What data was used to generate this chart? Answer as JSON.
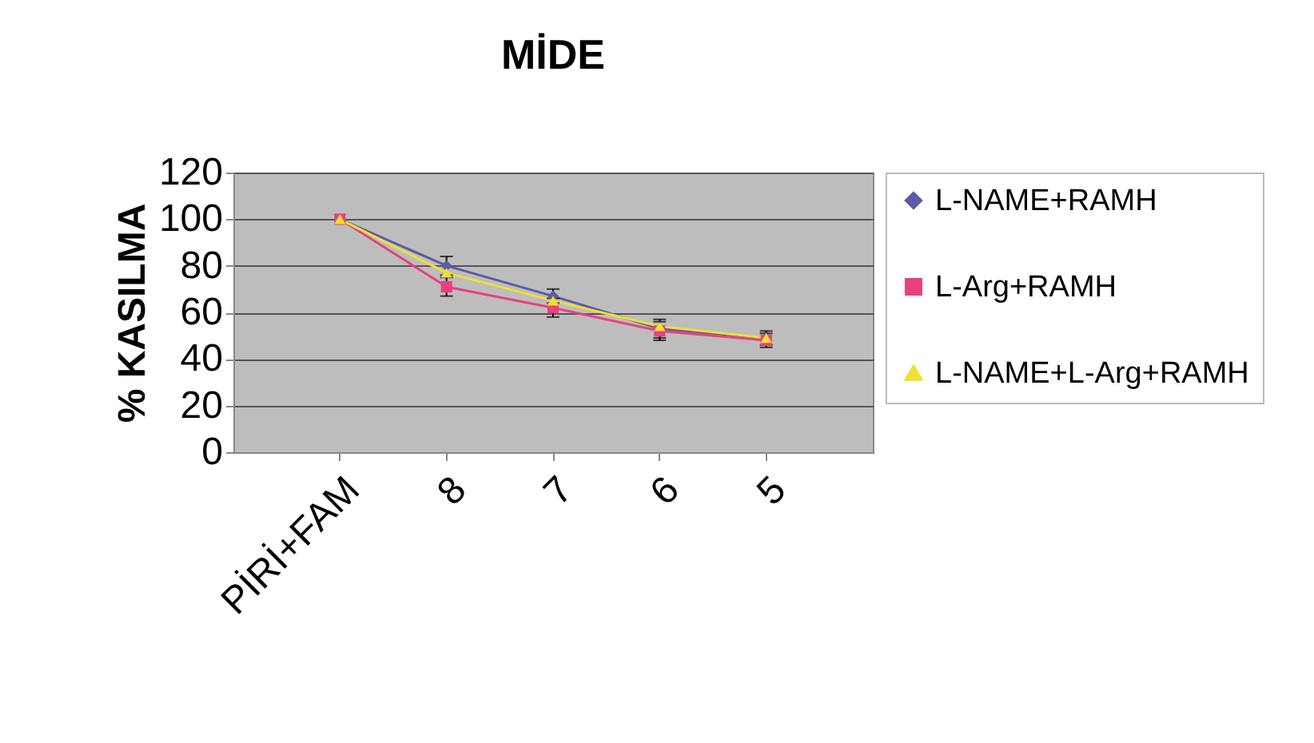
{
  "chart_data": {
    "type": "line",
    "title": "MİDE",
    "ylabel": "% KASILMA",
    "categories": [
      "PİRİ+FAM",
      "8",
      "7",
      "6",
      "5"
    ],
    "ylim": [
      0,
      120
    ],
    "yticks": [
      0,
      20,
      40,
      60,
      80,
      100,
      120
    ],
    "grid": "y",
    "legend": "top right",
    "series": [
      {
        "name": "L-NAME+RAMH",
        "color": "#5b5ba8",
        "marker": "diamond",
        "values": [
          100,
          80,
          67,
          53,
          49
        ],
        "errors": [
          null,
          4,
          3,
          4,
          3
        ]
      },
      {
        "name": "L-Arg+RAMH",
        "color": "#e8417f",
        "marker": "square",
        "values": [
          100,
          71,
          62,
          52,
          48
        ],
        "errors": [
          null,
          4,
          4,
          4,
          3
        ]
      },
      {
        "name": "L-NAME+L-Arg+RAMH",
        "color": "#f0e030",
        "marker": "triangle",
        "values": [
          100,
          77,
          65,
          54,
          49
        ]
      }
    ]
  }
}
